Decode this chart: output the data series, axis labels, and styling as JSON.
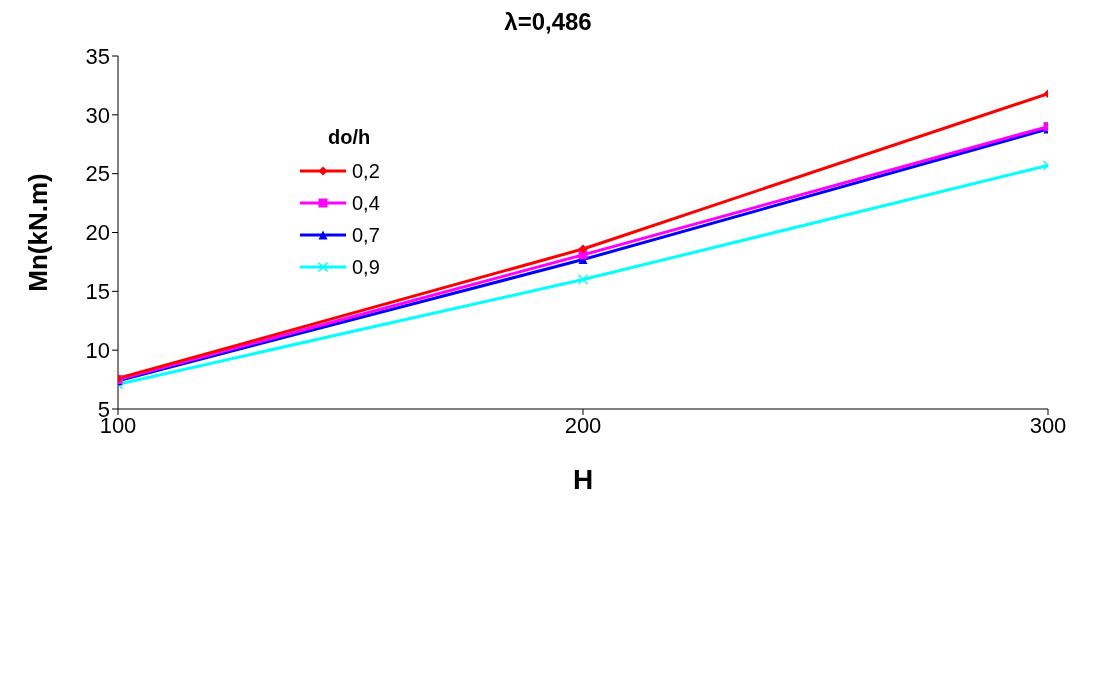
{
  "chart_data": {
    "type": "line",
    "title": "λ=0,486",
    "xlabel": "H",
    "ylabel": "Mn(kN.m)",
    "legend_title": "do/h",
    "legend": "top left",
    "x": [
      100,
      200,
      300
    ],
    "xlim": [
      100,
      300
    ],
    "xticks": [
      100,
      200,
      300
    ],
    "ylim": [
      5,
      35
    ],
    "yticks": [
      5,
      10,
      15,
      20,
      25,
      30,
      35
    ],
    "series": [
      {
        "name": "0,2",
        "color": "#ff0000",
        "marker": "diamond",
        "values": [
          7.6,
          18.6,
          31.8
        ]
      },
      {
        "name": "0,4",
        "color": "#ff00ff",
        "marker": "square",
        "values": [
          7.5,
          18.1,
          29.0
        ]
      },
      {
        "name": "0,7",
        "color": "#0000ff",
        "marker": "triangle",
        "values": [
          7.4,
          17.7,
          28.8
        ]
      },
      {
        "name": "0,9",
        "color": "#00ffff",
        "marker": "cross",
        "values": [
          7.1,
          16.0,
          25.7
        ]
      }
    ]
  }
}
